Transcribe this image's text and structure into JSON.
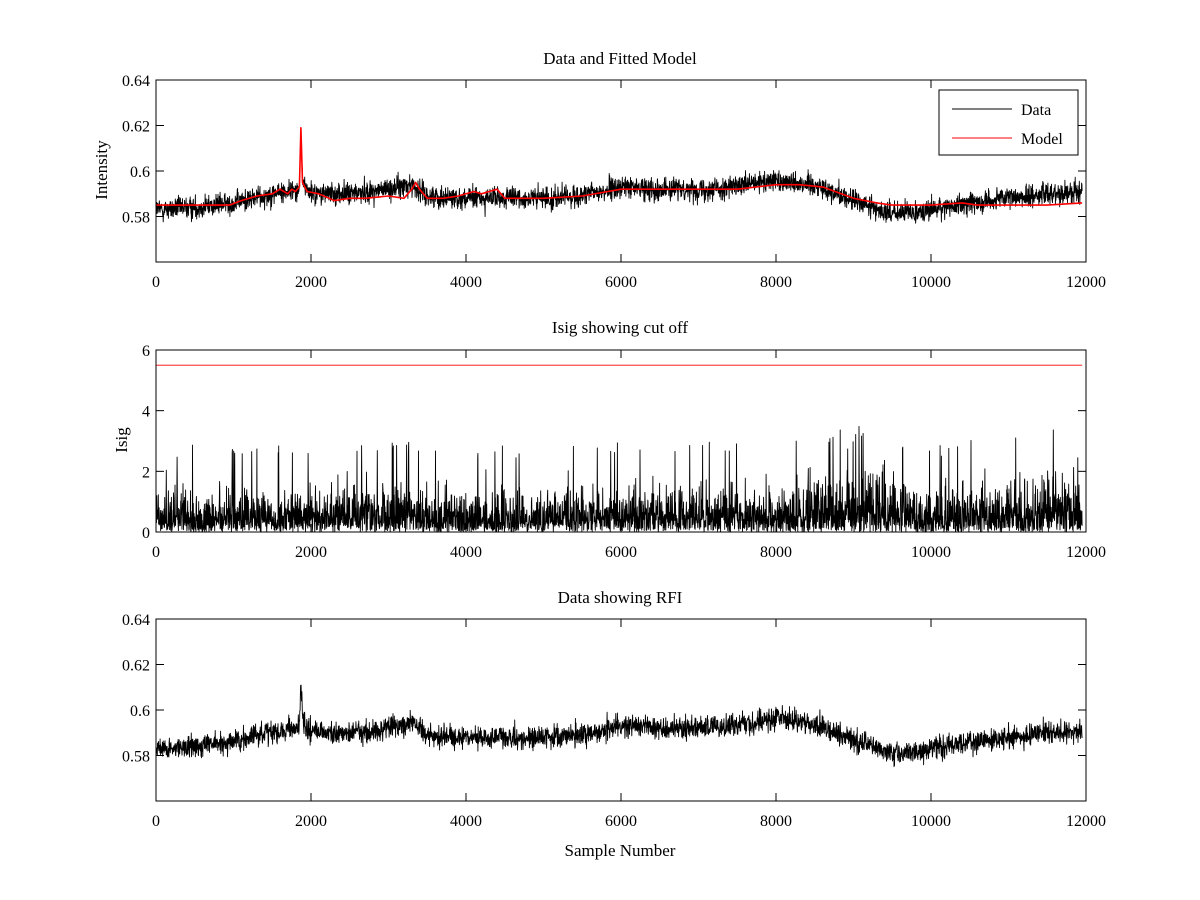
{
  "figure": {
    "background": "#ffffff",
    "data_color": "#000000",
    "model_color": "#ff0000"
  },
  "chart_data": [
    {
      "type": "line",
      "title": "Data and Fitted Model",
      "xlabel": "",
      "ylabel": "Intensity",
      "xlim": [
        0,
        12000
      ],
      "ylim": [
        0.56,
        0.64
      ],
      "xticks": [
        "0",
        "2000",
        "4000",
        "6000",
        "8000",
        "10000",
        "12000"
      ],
      "yticks": [
        "0.58",
        "0.6",
        "0.62",
        "0.64"
      ],
      "legend": {
        "placement": "top-right",
        "entries": [
          "Data",
          "Model"
        ]
      },
      "series": [
        {
          "name": "Data",
          "color": "#000000",
          "description_points": {
            "x": [
              0,
              500,
              1000,
              1500,
              1850,
              1870,
              1900,
              2000,
              2500,
              3000,
              3300,
              3500,
              4000,
              4500,
              5000,
              5500,
              6000,
              6500,
              7000,
              7500,
              8000,
              8500,
              9000,
              9500,
              10000,
              10500,
              11000,
              11500,
              11950
            ],
            "y": [
              0.583,
              0.584,
              0.586,
              0.59,
              0.592,
              0.614,
              0.594,
              0.59,
              0.59,
              0.592,
              0.594,
              0.589,
              0.588,
              0.588,
              0.588,
              0.589,
              0.593,
              0.592,
              0.592,
              0.593,
              0.596,
              0.594,
              0.587,
              0.581,
              0.583,
              0.586,
              0.588,
              0.59,
              0.591
            ]
          },
          "noise_amplitude": 0.0045
        },
        {
          "name": "Model",
          "color": "#ff0000",
          "x": [
            0,
            500,
            950,
            1100,
            1300,
            1500,
            1600,
            1700,
            1750,
            1800,
            1850,
            1870,
            1890,
            1950,
            2100,
            2300,
            2500,
            2700,
            3000,
            3200,
            3300,
            3350,
            3400,
            3500,
            3700,
            3900,
            4100,
            4200,
            4300,
            4400,
            4500,
            5000,
            5500,
            6000,
            6500,
            7000,
            7500,
            8000,
            8300,
            8600,
            9000,
            9300,
            9500,
            10000,
            10400,
            10600,
            11000,
            11500,
            11950
          ],
          "y": [
            0.585,
            0.585,
            0.585,
            0.587,
            0.589,
            0.59,
            0.592,
            0.59,
            0.592,
            0.591,
            0.593,
            0.619,
            0.595,
            0.591,
            0.59,
            0.587,
            0.588,
            0.588,
            0.589,
            0.588,
            0.592,
            0.595,
            0.592,
            0.588,
            0.588,
            0.589,
            0.591,
            0.59,
            0.591,
            0.592,
            0.588,
            0.588,
            0.589,
            0.592,
            0.592,
            0.592,
            0.592,
            0.594,
            0.594,
            0.593,
            0.588,
            0.586,
            0.585,
            0.585,
            0.586,
            0.585,
            0.585,
            0.585,
            0.586
          ]
        }
      ]
    },
    {
      "type": "line",
      "title": "Isig showing cut off",
      "xlabel": "",
      "ylabel": "Isig",
      "xlim": [
        0,
        12000
      ],
      "ylim": [
        0,
        6
      ],
      "xticks": [
        "0",
        "2000",
        "4000",
        "6000",
        "8000",
        "10000",
        "12000"
      ],
      "yticks": [
        "0",
        "2",
        "4",
        "6"
      ],
      "series": [
        {
          "name": "",
          "color": "#000000",
          "envelope": {
            "x": [
              0,
              2000,
              2700,
              4000,
              6000,
              8000,
              9000,
              9400,
              10000,
              11000,
              11950
            ],
            "typical_max": [
              2.2,
              2.0,
              2.6,
              2.0,
              2.2,
              2.2,
              3.0,
              3.0,
              2.0,
              2.6,
              2.8
            ],
            "peak_max": [
              2.9,
              2.9,
              3.1,
              2.8,
              3.0,
              3.0,
              3.5,
              3.4,
              2.8,
              3.5,
              3.4
            ]
          }
        },
        {
          "name": "cut off",
          "color": "#ff0000",
          "x": [
            0,
            11950
          ],
          "y": [
            5.5,
            5.5
          ]
        }
      ]
    },
    {
      "type": "line",
      "title": "Data showing RFI",
      "xlabel": "Sample Number",
      "ylabel": "",
      "xlim": [
        0,
        12000
      ],
      "ylim": [
        0.56,
        0.64
      ],
      "xticks": [
        "0",
        "2000",
        "4000",
        "6000",
        "8000",
        "10000",
        "12000"
      ],
      "yticks": [
        "0.58",
        "0.6",
        "0.62",
        "0.64"
      ],
      "series": [
        {
          "name": "",
          "color": "#000000",
          "description_points": {
            "x": [
              0,
              500,
              1000,
              1500,
              1850,
              1870,
              1900,
              2000,
              2500,
              3000,
              3300,
              3500,
              4000,
              4500,
              5000,
              5500,
              6000,
              6500,
              7000,
              7500,
              8000,
              8500,
              9000,
              9500,
              10000,
              10500,
              11000,
              11500,
              11950
            ],
            "y": [
              0.583,
              0.584,
              0.586,
              0.59,
              0.592,
              0.612,
              0.594,
              0.59,
              0.59,
              0.592,
              0.594,
              0.589,
              0.588,
              0.588,
              0.588,
              0.589,
              0.593,
              0.592,
              0.592,
              0.593,
              0.596,
              0.594,
              0.587,
              0.581,
              0.583,
              0.586,
              0.588,
              0.59,
              0.591
            ]
          },
          "noise_amplitude": 0.0045
        }
      ]
    }
  ]
}
